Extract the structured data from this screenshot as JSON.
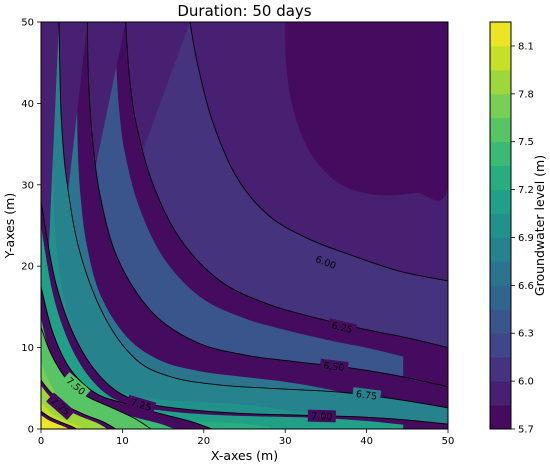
{
  "chart_data": {
    "type": "contour",
    "title": "Duration: 50 days",
    "xlabel": "X-axes (m)",
    "ylabel": "Y-axes (m)",
    "xlim": [
      0,
      50
    ],
    "ylim": [
      0,
      50
    ],
    "xticks": [
      0,
      10,
      20,
      30,
      40,
      50
    ],
    "yticks": [
      0,
      10,
      20,
      30,
      40,
      50
    ],
    "colormap": "viridis",
    "colorbar": {
      "label": "Groundwater level (m)",
      "range": [
        5.7,
        8.25
      ],
      "ticks": [
        5.7,
        6.0,
        6.3,
        6.6,
        6.9,
        7.2,
        7.5,
        7.8,
        8.1
      ],
      "tick_labels": [
        "5.7",
        "6.0",
        "6.3",
        "6.6",
        "6.9",
        "7.2",
        "7.5",
        "7.8",
        "8.1"
      ],
      "fill_levels": [
        5.7,
        5.85,
        6.0,
        6.15,
        6.3,
        6.45,
        6.6,
        6.75,
        6.9,
        7.05,
        7.2,
        7.35,
        7.5,
        7.65,
        7.8,
        7.95,
        8.1,
        8.25
      ]
    },
    "contour_lines": [
      {
        "level": 6.0,
        "label": "6.00",
        "label_at": [
          35,
          20.5
        ],
        "points": [
          [
            18.3,
            50
          ],
          [
            19.2,
            45
          ],
          [
            21,
            38
          ],
          [
            24,
            31
          ],
          [
            28,
            26.2
          ],
          [
            33,
            23.3
          ],
          [
            38,
            21.4
          ],
          [
            44,
            19.4
          ],
          [
            50,
            18.2
          ]
        ]
      },
      {
        "level": 6.25,
        "label": "6.25",
        "label_at": [
          37,
          12.5
        ],
        "points": [
          [
            10.4,
            50
          ],
          [
            10.8,
            44
          ],
          [
            11.6,
            38
          ],
          [
            13.6,
            30.5
          ],
          [
            17,
            23.5
          ],
          [
            22,
            18.2
          ],
          [
            28,
            15.3
          ],
          [
            34,
            13.6
          ],
          [
            40,
            12.2
          ],
          [
            45,
            11.2
          ],
          [
            50,
            10.0
          ]
        ]
      },
      {
        "level": 6.5,
        "label": "6.50",
        "label_at": [
          36,
          7.7
        ],
        "points": [
          [
            5.7,
            50
          ],
          [
            5.8,
            44
          ],
          [
            6.2,
            37
          ],
          [
            7.2,
            29
          ],
          [
            9.4,
            21
          ],
          [
            13.6,
            14.4
          ],
          [
            19,
            10.7
          ],
          [
            25,
            9.1
          ],
          [
            31,
            8.3
          ],
          [
            38,
            7.5
          ],
          [
            44,
            6.5
          ],
          [
            50,
            5.2
          ]
        ]
      },
      {
        "level": 6.75,
        "label": "6.75",
        "label_at": [
          40,
          4.2
        ],
        "points": [
          [
            2.2,
            50
          ],
          [
            2.3,
            45
          ],
          [
            2.5,
            38
          ],
          [
            3.1,
            31
          ],
          [
            4.7,
            22
          ],
          [
            7.7,
            14
          ],
          [
            11.6,
            8.6
          ],
          [
            16,
            6.4
          ],
          [
            22,
            5.4
          ],
          [
            30,
            4.9
          ],
          [
            37,
            4.5
          ],
          [
            44,
            3.6
          ],
          [
            50,
            2.6
          ]
        ]
      },
      {
        "level": 7.0,
        "label": "7.00",
        "label_at": [
          34.5,
          1.6
        ],
        "points": [
          [
            0,
            28
          ],
          [
            1.8,
            18
          ],
          [
            4.5,
            10.6
          ],
          [
            8,
            5.7
          ],
          [
            12,
            3.4
          ],
          [
            18,
            2.4
          ],
          [
            25,
            1.9
          ],
          [
            32,
            1.7
          ],
          [
            39,
            1.5
          ],
          [
            45,
            1.1
          ],
          [
            50,
            0.6
          ]
        ]
      },
      {
        "level": 7.25,
        "label": "7.25",
        "label_at": [
          12.3,
          3.0
        ],
        "points": [
          [
            0,
            17.5
          ],
          [
            1.4,
            12
          ],
          [
            3.5,
            7.5
          ],
          [
            6.7,
            4.4
          ],
          [
            10.5,
            3.1
          ],
          [
            15,
            1.8
          ],
          [
            18.5,
            0.9
          ],
          [
            21,
            0
          ]
        ]
      },
      {
        "level": 7.5,
        "label": "7.50",
        "label_at": [
          4.3,
          5.3
        ],
        "points": [
          [
            0,
            12.5
          ],
          [
            1.2,
            9.3
          ],
          [
            3,
            6.3
          ],
          [
            5.5,
            4.1
          ],
          [
            8.5,
            2.7
          ],
          [
            11.5,
            1.3
          ],
          [
            13.5,
            0
          ]
        ]
      },
      {
        "level": 7.75,
        "label": "7.75",
        "label_at": [
          2.4,
          2.8
        ],
        "points": [
          [
            0,
            6
          ],
          [
            1.2,
            4.5
          ],
          [
            2.9,
            3.0
          ],
          [
            5.3,
            1.8
          ],
          [
            7.6,
            0.9
          ],
          [
            9.2,
            0
          ]
        ]
      },
      {
        "level": 8.0,
        "label": "",
        "points": [
          [
            0,
            2.2
          ],
          [
            1.0,
            1.5
          ],
          [
            2.3,
            0.9
          ],
          [
            3.8,
            0.3
          ],
          [
            4.4,
            0
          ]
        ]
      }
    ],
    "extra_boundaries": [
      {
        "level": 5.85,
        "closed": true,
        "points": [
          [
            30,
            50
          ],
          [
            30.1,
            45
          ],
          [
            30.8,
            40
          ],
          [
            32.5,
            35
          ],
          [
            35,
            31.5
          ],
          [
            38,
            29.5
          ],
          [
            42,
            28.7
          ],
          [
            46,
            29
          ],
          [
            50,
            29.8
          ],
          [
            50,
            50
          ]
        ]
      }
    ]
  }
}
